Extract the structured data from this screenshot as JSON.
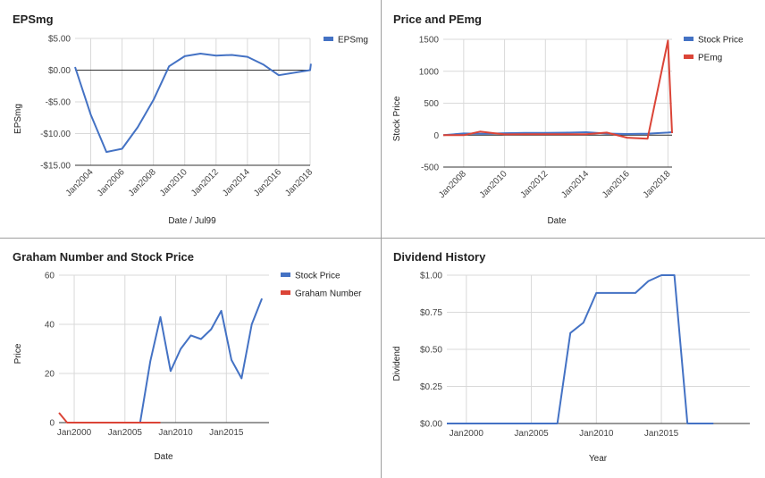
{
  "chart_data": [
    {
      "type": "line",
      "title": "EPSmg",
      "xlabel": "Date / Jul99",
      "ylabel": "EPSmg",
      "xlim": [
        2003,
        2018
      ],
      "ylim": [
        -15,
        5
      ],
      "ytick_values": [
        5,
        0,
        -5,
        -10,
        -15
      ],
      "ytick_labels": [
        "$5.00",
        "$0.00",
        "-$5.00",
        "-$10.00",
        "-$15.00"
      ],
      "xtick_values": [
        2004,
        2006,
        2008,
        2010,
        2012,
        2014,
        2016,
        2018
      ],
      "xtick_labels": [
        "Jan2004",
        "Jan2006",
        "Jan2008",
        "Jan2010",
        "Jan2012",
        "Jan2014",
        "Jan2016",
        "Jan2018"
      ],
      "xtick_rotated": true,
      "zero_line": true,
      "series": [
        {
          "name": "EPSmg",
          "color": "#4472C4",
          "x": [
            2003,
            2004,
            2005,
            2006,
            2007,
            2008,
            2009,
            2010,
            2011,
            2012,
            2013,
            2014,
            2015,
            2016,
            2018,
            2018.05
          ],
          "values": [
            0.5,
            -7,
            -12.9,
            -12.4,
            -9,
            -4.7,
            0.6,
            2.2,
            2.6,
            2.3,
            2.4,
            2.1,
            0.9,
            -0.8,
            0,
            1
          ]
        }
      ]
    },
    {
      "type": "line",
      "title": "Price and PEmg",
      "xlabel": "Date",
      "ylabel": "Stock Price",
      "xlim": [
        2007,
        2018.2
      ],
      "ylim": [
        -500,
        1500
      ],
      "ytick_values": [
        1500,
        1000,
        500,
        0,
        -500
      ],
      "ytick_labels": [
        "1500",
        "1000",
        "500",
        "0",
        "-500"
      ],
      "xtick_values": [
        2008,
        2010,
        2012,
        2014,
        2016,
        2018
      ],
      "xtick_labels": [
        "Jan2008",
        "Jan2010",
        "Jan2012",
        "Jan2014",
        "Jan2016",
        "Jan2018"
      ],
      "xtick_rotated": true,
      "zero_line": true,
      "series": [
        {
          "name": "Stock Price",
          "color": "#4472C4",
          "x": [
            2007,
            2008,
            2009,
            2010,
            2011,
            2012,
            2013,
            2014,
            2015,
            2016,
            2017,
            2018,
            2018.2
          ],
          "values": [
            0,
            26,
            21,
            30,
            35,
            34,
            38,
            45,
            25,
            18,
            23,
            40,
            45
          ]
        },
        {
          "name": "PEmg",
          "color": "#DB4437",
          "x": [
            2007,
            2008,
            2008.8,
            2009.5,
            2010,
            2011,
            2012,
            2013,
            2014,
            2015,
            2016,
            2017,
            2018,
            2018.2
          ],
          "values": [
            0,
            0,
            55,
            30,
            12,
            15,
            14,
            14,
            15,
            40,
            -40,
            -55,
            1480,
            30
          ]
        }
      ]
    },
    {
      "type": "line",
      "title": "Graham Number and Stock Price",
      "xlabel": "Date",
      "ylabel": "Price",
      "xlim": [
        1998.5,
        2019.2
      ],
      "ylim": [
        0,
        60
      ],
      "ytick_values": [
        60,
        40,
        20,
        0
      ],
      "ytick_labels": [
        "60",
        "40",
        "20",
        "0"
      ],
      "xtick_values": [
        2000,
        2005,
        2010,
        2015
      ],
      "xtick_labels": [
        "Jan2000",
        "Jan2005",
        "Jan2010",
        "Jan2015"
      ],
      "xtick_rotated": false,
      "zero_line": false,
      "series": [
        {
          "name": "Stock Price",
          "color": "#4472C4",
          "x": [
            1999.3,
            2006.5,
            2007.5,
            2008.5,
            2009.5,
            2010.5,
            2011.5,
            2012.5,
            2013.5,
            2014.5,
            2015.5,
            2016.5,
            2017.5,
            2018.5
          ],
          "values": [
            0,
            0,
            25,
            43,
            21,
            30,
            35.5,
            34,
            38,
            45.5,
            25.5,
            18,
            40,
            50.5
          ]
        },
        {
          "name": "Graham Number",
          "color": "#DB4437",
          "x": [
            1998.5,
            1999.3,
            2002,
            2005,
            2008.5
          ],
          "values": [
            4,
            0,
            0,
            0,
            0
          ]
        }
      ]
    },
    {
      "type": "line",
      "title": "Dividend History",
      "xlabel": "Year",
      "ylabel": "Dividend",
      "xlim": [
        1998.5,
        2021.8
      ],
      "ylim": [
        0,
        1
      ],
      "ytick_values": [
        1,
        0.75,
        0.5,
        0.25,
        0
      ],
      "ytick_labels": [
        "$1.00",
        "$0.75",
        "$0.50",
        "$0.25",
        "$0.00"
      ],
      "xtick_values": [
        2000,
        2005,
        2010,
        2015
      ],
      "xtick_labels": [
        "Jan2000",
        "Jan2005",
        "Jan2010",
        "Jan2015"
      ],
      "xtick_rotated": false,
      "zero_line": false,
      "series": [
        {
          "name": "Dividend",
          "color": "#4472C4",
          "x": [
            1998.5,
            2007,
            2008,
            2009,
            2010,
            2011,
            2012,
            2013,
            2014,
            2015,
            2016,
            2017,
            2018,
            2019
          ],
          "values": [
            0,
            0,
            0.61,
            0.68,
            0.88,
            0.88,
            0.88,
            0.88,
            0.96,
            1.0,
            1.0,
            0,
            0,
            0
          ]
        }
      ]
    }
  ]
}
